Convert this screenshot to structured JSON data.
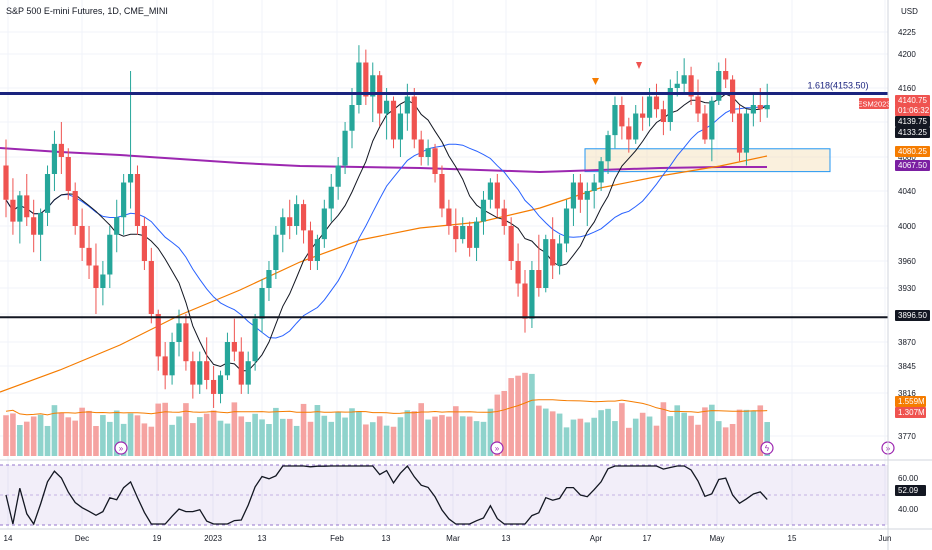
{
  "header": {
    "title": "S&P 500 E-mini Futures, 1D, CME_MINI",
    "currency": "USD"
  },
  "chart_data": {
    "type": "candlestick",
    "symbol": "ESM2023",
    "price_axis": {
      "ticks": [
        4225,
        4200,
        4160,
        4120,
        4080,
        4040,
        4000,
        3960,
        3930,
        3900,
        3870,
        3845,
        3816,
        3770
      ]
    },
    "x_axis": {
      "ticks": [
        "14",
        "Dec",
        "19",
        "2023",
        "13",
        "Feb",
        "13",
        "Mar",
        "13",
        "Apr",
        "17",
        "May",
        "15",
        "Jun"
      ]
    },
    "levels": {
      "fib_label": "1.618(4153.50)",
      "fib_price": 4153.5,
      "support_price": 3896.5,
      "demand_zone": [
        4067.5,
        4080.25
      ]
    },
    "price_labels": [
      {
        "text": "ESM2023",
        "bg": "#ef5350",
        "fg": "#ffffff"
      },
      {
        "text": "4140.75",
        "bg": "#ef5350",
        "fg": "#ffffff"
      },
      {
        "text": "01:06:32",
        "bg": "#ef5350",
        "fg": "#ffffff"
      },
      {
        "text": "4139.75",
        "bg": "#131722",
        "fg": "#ffffff"
      },
      {
        "text": "4133.25",
        "bg": "#131722",
        "fg": "#ffffff"
      },
      {
        "text": "4080.25",
        "bg": "#f57c00",
        "fg": "#ffffff"
      },
      {
        "text": "4067.50",
        "bg": "#7b1fa2",
        "fg": "#ffffff"
      },
      {
        "text": "3896.50",
        "bg": "#131722",
        "fg": "#ffffff"
      }
    ],
    "volume_labels": [
      {
        "text": "1.559M",
        "bg": "#f57c00"
      },
      {
        "text": "1.307M",
        "bg": "#ef5350"
      }
    ],
    "rsi": {
      "ticks": [
        "60.00",
        "40.00"
      ],
      "last": "52.09"
    },
    "colors": {
      "up": "#26a69a",
      "down": "#ef5350",
      "fib": "#1a237e",
      "sma200": "#9c27b0",
      "ema": "#f57c00",
      "sma_fast": "#131722",
      "sma_mid": "#2962ff"
    },
    "candles": [
      [
        4070,
        4100,
        4010,
        4030
      ],
      [
        4030,
        4055,
        3990,
        4005
      ],
      [
        4005,
        4040,
        3980,
        4035
      ],
      [
        4035,
        4060,
        4000,
        4010
      ],
      [
        4010,
        4030,
        3970,
        3990
      ],
      [
        3990,
        4020,
        3960,
        4015
      ],
      [
        4015,
        4070,
        4000,
        4060
      ],
      [
        4060,
        4110,
        4040,
        4095
      ],
      [
        4095,
        4120,
        4060,
        4080
      ],
      [
        4080,
        4090,
        4030,
        4040
      ],
      [
        4040,
        4050,
        3990,
        4000
      ],
      [
        4000,
        4020,
        3960,
        3975
      ],
      [
        3975,
        4000,
        3940,
        3955
      ],
      [
        3955,
        3980,
        3900,
        3930
      ],
      [
        3930,
        3960,
        3910,
        3945
      ],
      [
        3945,
        4000,
        3930,
        3990
      ],
      [
        3990,
        4030,
        3970,
        4010
      ],
      [
        4010,
        4060,
        3990,
        4050
      ],
      [
        4050,
        4180,
        4020,
        4060
      ],
      [
        4060,
        4070,
        3990,
        4000
      ],
      [
        4000,
        4010,
        3950,
        3960
      ],
      [
        3960,
        3975,
        3890,
        3900
      ],
      [
        3900,
        3905,
        3840,
        3855
      ],
      [
        3855,
        3870,
        3820,
        3835
      ],
      [
        3835,
        3880,
        3825,
        3870
      ],
      [
        3870,
        3905,
        3855,
        3890
      ],
      [
        3890,
        3900,
        3840,
        3850
      ],
      [
        3850,
        3860,
        3810,
        3825
      ],
      [
        3825,
        3860,
        3815,
        3850
      ],
      [
        3850,
        3875,
        3820,
        3830
      ],
      [
        3830,
        3845,
        3800,
        3815
      ],
      [
        3815,
        3840,
        3805,
        3835
      ],
      [
        3835,
        3880,
        3830,
        3870
      ],
      [
        3870,
        3895,
        3850,
        3860
      ],
      [
        3860,
        3875,
        3815,
        3825
      ],
      [
        3825,
        3860,
        3815,
        3850
      ],
      [
        3850,
        3900,
        3840,
        3895
      ],
      [
        3895,
        3940,
        3880,
        3930
      ],
      [
        3930,
        3960,
        3915,
        3950
      ],
      [
        3950,
        4000,
        3940,
        3990
      ],
      [
        3990,
        4020,
        3970,
        4010
      ],
      [
        4010,
        4030,
        3985,
        4000
      ],
      [
        4000,
        4035,
        3990,
        4025
      ],
      [
        4025,
        4030,
        3980,
        3995
      ],
      [
        3995,
        4005,
        3950,
        3960
      ],
      [
        3960,
        3990,
        3950,
        3985
      ],
      [
        3985,
        4030,
        3975,
        4020
      ],
      [
        4020,
        4060,
        4005,
        4045
      ],
      [
        4045,
        4080,
        4030,
        4070
      ],
      [
        4070,
        4120,
        4060,
        4110
      ],
      [
        4110,
        4160,
        4090,
        4140
      ],
      [
        4140,
        4210,
        4130,
        4190
      ],
      [
        4190,
        4205,
        4140,
        4150
      ],
      [
        4150,
        4190,
        4120,
        4175
      ],
      [
        4175,
        4180,
        4115,
        4130
      ],
      [
        4130,
        4160,
        4100,
        4145
      ],
      [
        4145,
        4150,
        4090,
        4100
      ],
      [
        4100,
        4140,
        4080,
        4130
      ],
      [
        4130,
        4165,
        4110,
        4150
      ],
      [
        4150,
        4160,
        4090,
        4100
      ],
      [
        4100,
        4110,
        4070,
        4080
      ],
      [
        4080,
        4100,
        4070,
        4090
      ],
      [
        4090,
        4095,
        4050,
        4060
      ],
      [
        4060,
        4070,
        4010,
        4020
      ],
      [
        4020,
        4030,
        3990,
        4000
      ],
      [
        4000,
        4020,
        3970,
        3985
      ],
      [
        3985,
        4010,
        3980,
        4000
      ],
      [
        4000,
        4005,
        3965,
        3975
      ],
      [
        3975,
        4010,
        3960,
        4005
      ],
      [
        4005,
        4040,
        3990,
        4030
      ],
      [
        4030,
        4055,
        4020,
        4050
      ],
      [
        4050,
        4060,
        4010,
        4020
      ],
      [
        4020,
        4030,
        3990,
        4000
      ],
      [
        4000,
        4010,
        3950,
        3960
      ],
      [
        3960,
        3980,
        3920,
        3935
      ],
      [
        3935,
        3950,
        3880,
        3895
      ],
      [
        3895,
        3960,
        3885,
        3950
      ],
      [
        3950,
        3990,
        3920,
        3930
      ],
      [
        3930,
        3990,
        3925,
        3985
      ],
      [
        3985,
        4010,
        3940,
        3955
      ],
      [
        3955,
        3990,
        3945,
        3980
      ],
      [
        3980,
        4030,
        3970,
        4020
      ],
      [
        4020,
        4060,
        4000,
        4050
      ],
      [
        4050,
        4060,
        4015,
        4030
      ],
      [
        4030,
        4050,
        4000,
        4040
      ],
      [
        4040,
        4060,
        4020,
        4050
      ],
      [
        4050,
        4080,
        4040,
        4075
      ],
      [
        4075,
        4110,
        4060,
        4105
      ],
      [
        4105,
        4150,
        4090,
        4140
      ],
      [
        4140,
        4150,
        4100,
        4115
      ],
      [
        4115,
        4125,
        4085,
        4100
      ],
      [
        4100,
        4140,
        4095,
        4130
      ],
      [
        4130,
        4150,
        4110,
        4125
      ],
      [
        4125,
        4160,
        4115,
        4150
      ],
      [
        4150,
        4165,
        4125,
        4135
      ],
      [
        4135,
        4145,
        4105,
        4120
      ],
      [
        4120,
        4170,
        4110,
        4160
      ],
      [
        4160,
        4180,
        4150,
        4165
      ],
      [
        4165,
        4195,
        4155,
        4175
      ],
      [
        4175,
        4185,
        4140,
        4150
      ],
      [
        4150,
        4170,
        4120,
        4130
      ],
      [
        4130,
        4140,
        4095,
        4100
      ],
      [
        4100,
        4150,
        4075,
        4145
      ],
      [
        4145,
        4190,
        4140,
        4180
      ],
      [
        4180,
        4195,
        4160,
        4170
      ],
      [
        4170,
        4175,
        4120,
        4130
      ],
      [
        4130,
        4140,
        4075,
        4085
      ],
      [
        4085,
        4135,
        4070,
        4130
      ],
      [
        4130,
        4155,
        4115,
        4140
      ],
      [
        4140,
        4160,
        4120,
        4135
      ],
      [
        4135,
        4165,
        4125,
        4140
      ]
    ]
  }
}
